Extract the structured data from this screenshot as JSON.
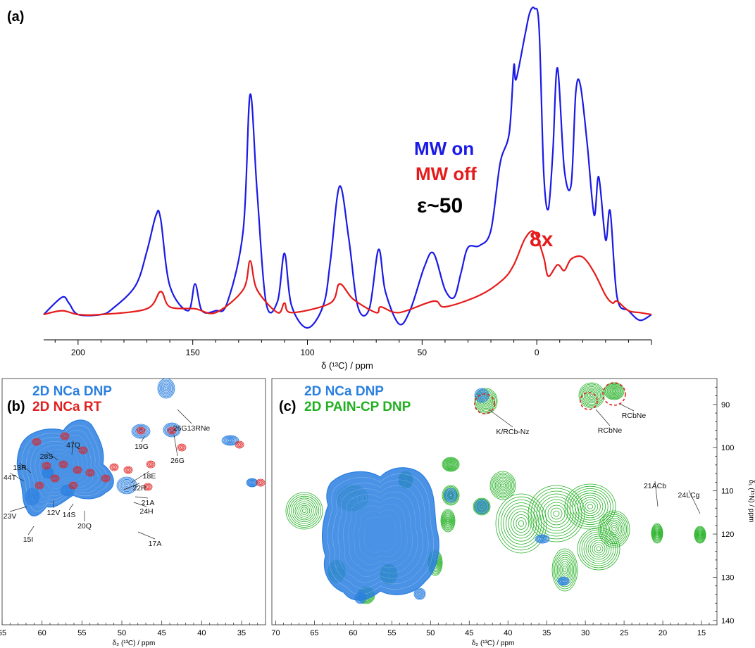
{
  "panel_a": {
    "letter": "(a)",
    "xlabel": "δ (¹³C) / ppm",
    "legend_on": "MW on",
    "legend_off": "MW off",
    "enhancement": "ε~50",
    "scale_note": "8x",
    "colors": {
      "on": "#1a1ae6",
      "off": "#e61a1a"
    }
  },
  "panel_b": {
    "letter": "(b)",
    "legend_dnp": "2D NCa DNP",
    "legend_rt": "2D NCa RT",
    "xlabel": "δ₂ (¹³C) / ppm",
    "colors": {
      "dnp": "#2a7fe0",
      "rt": "#e02020"
    }
  },
  "panel_c": {
    "letter": "(c)",
    "legend_dnp": "2D NCa DNP",
    "legend_pain": "2D PAIN-CP DNP",
    "xlabel": "δ₂ (¹³C) / ppm",
    "ylabel": "δ₁ (¹⁵N) / ppm",
    "colors": {
      "dnp": "#2a7fe0",
      "pain": "#22b022"
    }
  },
  "chart_data": [
    {
      "type": "line",
      "panel": "a",
      "xlabel": "δ (¹³C) / ppm",
      "xlim": [
        215,
        -50
      ],
      "x_ticks": [
        "200",
        "150",
        "100",
        "50",
        "0"
      ],
      "series": [
        {
          "name": "MW on",
          "x": [
            215,
            207,
            204,
            200,
            190,
            185,
            175,
            170,
            166,
            164,
            160,
            152,
            149,
            146,
            140,
            135,
            128,
            125,
            122,
            118,
            113,
            110,
            107,
            100,
            93,
            90,
            86,
            82,
            78,
            73,
            69,
            66,
            60,
            55,
            49,
            45,
            40,
            36,
            33,
            30,
            25,
            20,
            16,
            12,
            10,
            9,
            5,
            3,
            1,
            -1,
            -3,
            -5,
            -7,
            -9,
            -12,
            -15,
            -17,
            -19,
            -22,
            -25,
            -27,
            -30,
            -32,
            -35,
            -40,
            -45,
            -50
          ],
          "y": [
            0,
            0.9,
            0.6,
            0,
            0,
            0.3,
            1.5,
            3.3,
            5.2,
            5.0,
            1.5,
            0.2,
            1.6,
            0.2,
            0.2,
            0.6,
            4.4,
            11.5,
            6.5,
            0.6,
            0.7,
            3.2,
            0.5,
            -0.7,
            0.5,
            2.8,
            6.7,
            4.0,
            0.4,
            0.3,
            3.4,
            1.2,
            -0.5,
            0.3,
            2.5,
            3.2,
            1.3,
            0.9,
            2.2,
            3.5,
            3.6,
            4.4,
            7.9,
            9.5,
            13.0,
            12.3,
            14.7,
            15.8,
            16.0,
            15.0,
            7.5,
            5.5,
            8.5,
            12.9,
            7.6,
            6.8,
            11.6,
            12.0,
            8.9,
            5.2,
            7.2,
            3.9,
            5.4,
            0.9,
            0.2,
            -0.3,
            0
          ]
        },
        {
          "name": "MW off",
          "x": [
            215,
            207,
            200,
            190,
            170,
            164,
            160,
            149,
            140,
            128,
            125,
            122,
            113,
            110,
            107,
            90,
            86,
            80,
            70,
            68,
            60,
            45,
            40,
            25,
            15,
            10,
            5,
            1,
            -3,
            -5,
            -9,
            -12,
            -15,
            -20,
            -25,
            -30,
            -33,
            -35,
            -40,
            -45,
            -50
          ],
          "y": [
            0,
            0.2,
            0,
            0,
            0.3,
            1.2,
            0.4,
            0.3,
            0.1,
            1.3,
            2.8,
            1.3,
            0.1,
            0.6,
            0.1,
            0.6,
            1.6,
            0.8,
            0.1,
            0.4,
            0.1,
            0.7,
            0.4,
            1.0,
            1.8,
            2.6,
            4.0,
            4.3,
            3.0,
            2.0,
            2.6,
            2.3,
            2.9,
            3.0,
            2.2,
            1.0,
            0.6,
            0.7,
            0.2,
            0.1,
            0
          ]
        }
      ]
    },
    {
      "type": "scatter",
      "panel": "b",
      "xlabel": "δ₂ (¹³C) / ppm",
      "xlim": [
        65,
        32
      ],
      "ylim": [
        84,
        141
      ],
      "x_ticks": [
        "65",
        "60",
        "55",
        "50",
        "45",
        "40",
        "35"
      ],
      "labels": [
        {
          "text": "26G13RNe",
          "x": 43.5,
          "y": 86
        },
        {
          "text": "19G",
          "x": 47.5,
          "y": 110.5
        },
        {
          "text": "26G",
          "x": 42.5,
          "y": 113
        },
        {
          "text": "47Q",
          "x": 55,
          "y": 115.5
        },
        {
          "text": "28S",
          "x": 58,
          "y": 117
        },
        {
          "text": "13R",
          "x": 61,
          "y": 121
        },
        {
          "text": "44T",
          "x": 62,
          "y": 123.5
        },
        {
          "text": "18E",
          "x": 52,
          "y": 124
        },
        {
          "text": "22R",
          "x": 53,
          "y": 125.5
        },
        {
          "text": "21A",
          "x": 50,
          "y": 128
        },
        {
          "text": "24H",
          "x": 50,
          "y": 130
        },
        {
          "text": "23V",
          "x": 61,
          "y": 130
        },
        {
          "text": "12V",
          "x": 58,
          "y": 130
        },
        {
          "text": "14S",
          "x": 56,
          "y": 131
        },
        {
          "text": "20Q",
          "x": 54.5,
          "y": 130
        },
        {
          "text": "15I",
          "x": 60.5,
          "y": 133
        },
        {
          "text": "17A",
          "x": 49,
          "y": 133
        }
      ]
    },
    {
      "type": "scatter",
      "panel": "c",
      "xlabel": "δ₂ (¹³C) / ppm",
      "ylabel": "δ₁ (¹⁵N) / ppm",
      "xlim": [
        70.5,
        13
      ],
      "ylim": [
        84,
        141
      ],
      "x_ticks": [
        "70",
        "65",
        "60",
        "55",
        "50",
        "45",
        "40",
        "35",
        "30",
        "25",
        "20",
        "15"
      ],
      "y_ticks": [
        "90",
        "100",
        "110",
        "120",
        "130",
        "140"
      ],
      "labels": [
        {
          "text": "K/RCb-Nz",
          "x": 42,
          "y": 86.5
        },
        {
          "text": "RCbNe",
          "x": 29,
          "y": 86.5
        },
        {
          "text": "RCbNe",
          "x": 26.5,
          "y": 86
        },
        {
          "text": "21ACb",
          "x": 21,
          "y": 119
        },
        {
          "text": "24LCg",
          "x": 15,
          "y": 119.5
        }
      ]
    }
  ]
}
